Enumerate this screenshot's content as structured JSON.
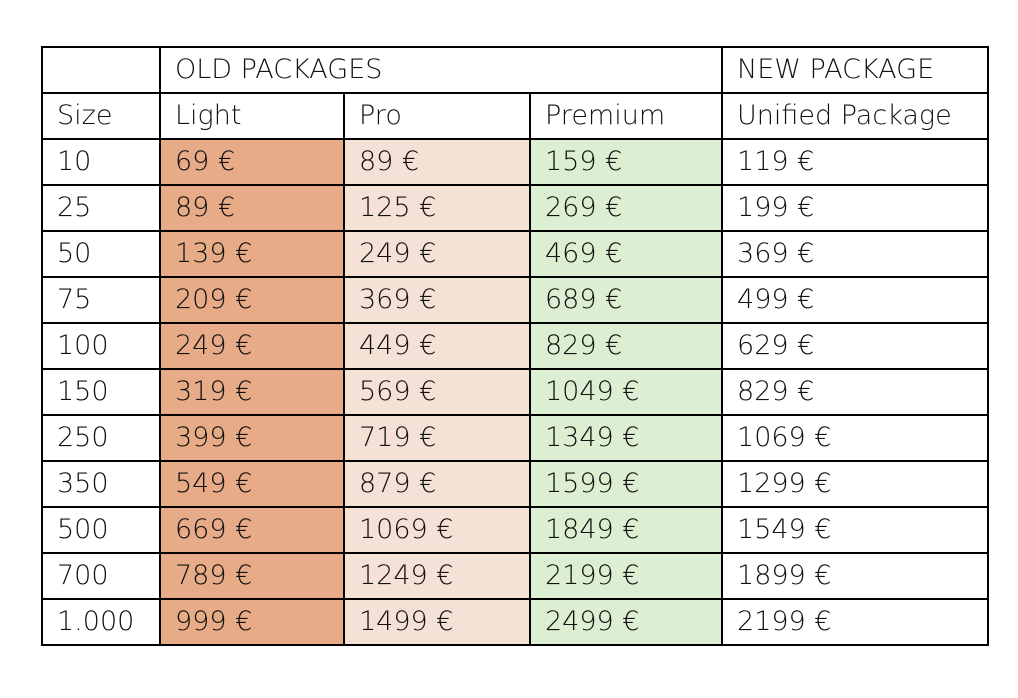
{
  "header": {
    "group_old": "OLD PACKAGES",
    "group_new": "NEW PACKAGE"
  },
  "columns": {
    "size": "Size",
    "light": "Light",
    "pro": "Pro",
    "premium": "Premium",
    "unified": "Unified Package"
  },
  "rows": [
    {
      "size": "10",
      "light": "69 €",
      "pro": "89 €",
      "premium": "159 €",
      "unified": "119 €"
    },
    {
      "size": "25",
      "light": "89 €",
      "pro": "125 €",
      "premium": "269 €",
      "unified": "199 €"
    },
    {
      "size": "50",
      "light": "139 €",
      "pro": "249 €",
      "premium": "469 €",
      "unified": "369 €"
    },
    {
      "size": "75",
      "light": "209 €",
      "pro": "369 €",
      "premium": "689 €",
      "unified": "499 €"
    },
    {
      "size": "100",
      "light": "249 €",
      "pro": "449 €",
      "premium": "829 €",
      "unified": "629 €"
    },
    {
      "size": "150",
      "light": "319 €",
      "pro": "569 €",
      "premium": "1049 €",
      "unified": "829 €"
    },
    {
      "size": "250",
      "light": "399 €",
      "pro": "719 €",
      "premium": "1349 €",
      "unified": "1069 €"
    },
    {
      "size": "350",
      "light": "549 €",
      "pro": "879 €",
      "premium": "1599 €",
      "unified": "1299 €"
    },
    {
      "size": "500",
      "light": "669 €",
      "pro": "1069 €",
      "premium": "1849 €",
      "unified": "1549 €"
    },
    {
      "size": "700",
      "light": "789 €",
      "pro": "1249 €",
      "premium": "2199 €",
      "unified": "1899 €"
    },
    {
      "size": "1.000",
      "light": "999 €",
      "pro": "1499 €",
      "premium": "2499 €",
      "unified": "2199 €"
    }
  ],
  "colors": {
    "light": "#e8ab87",
    "pro": "#f6e1d6",
    "premium": "#dcefd2",
    "border": "#000000"
  }
}
